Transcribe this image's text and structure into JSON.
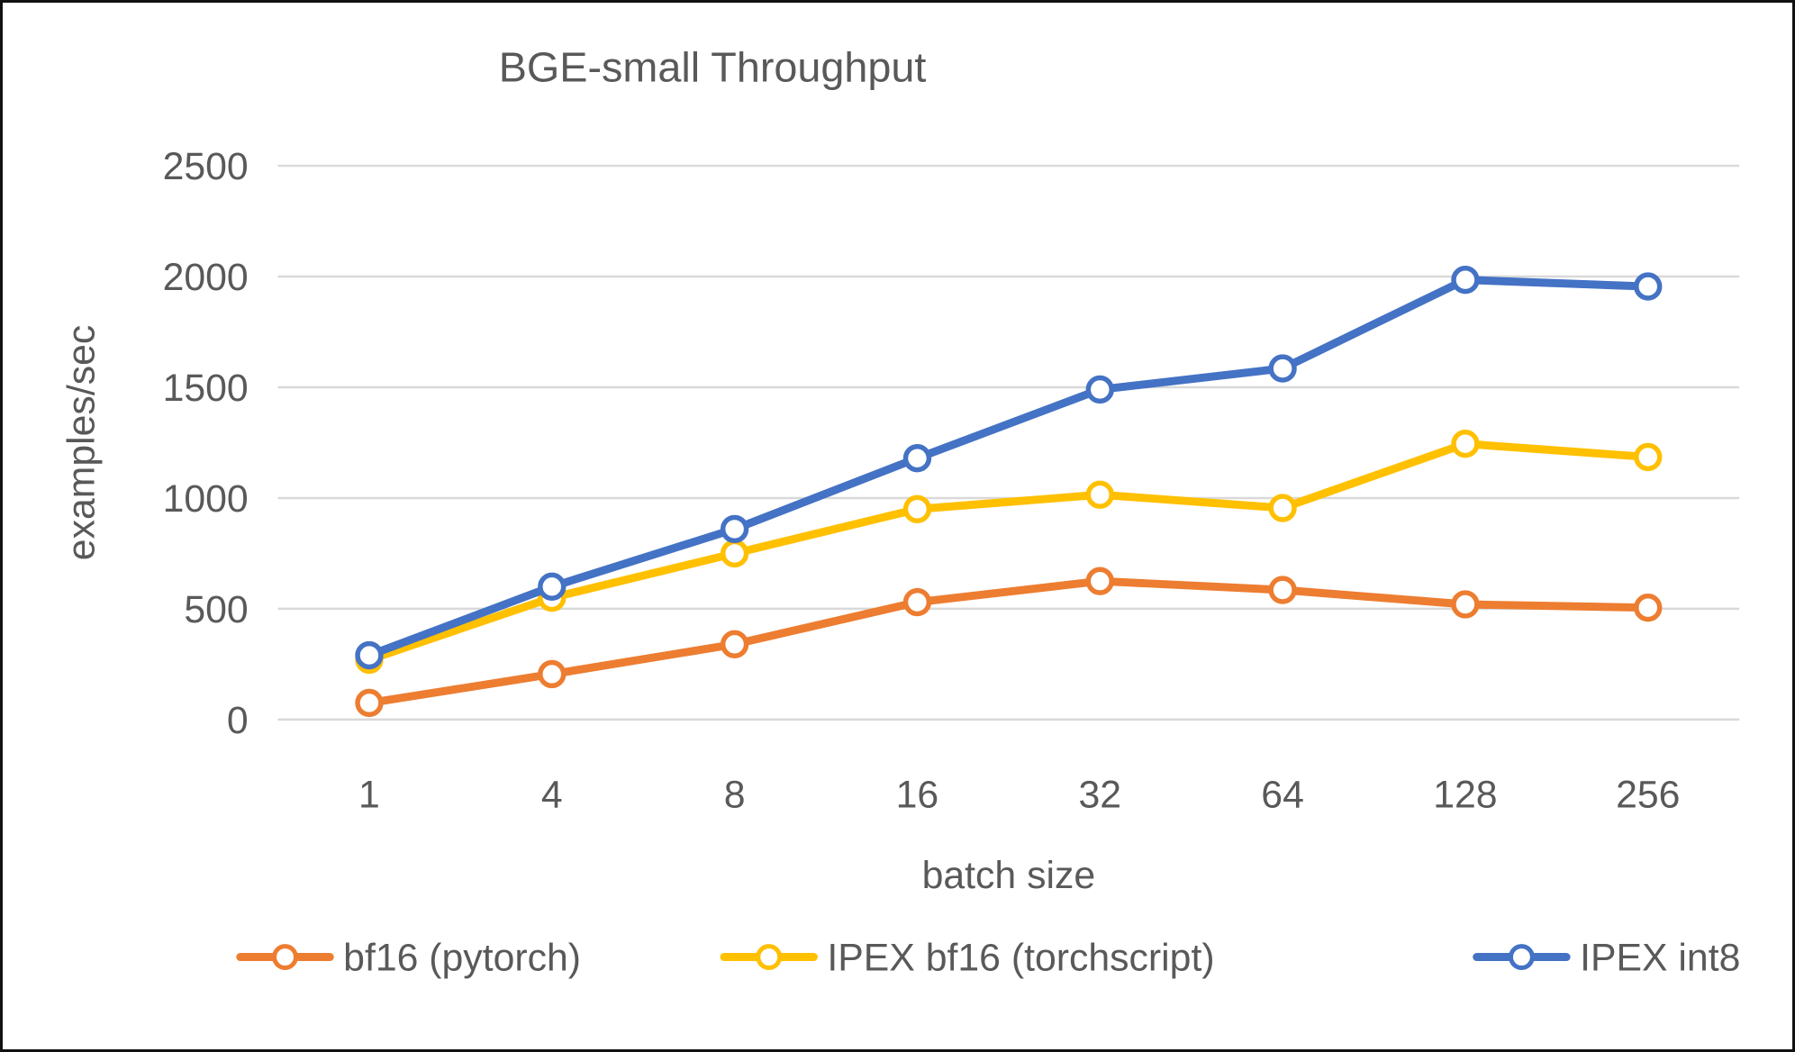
{
  "chart_data": {
    "type": "line",
    "title": "BGE-small Throughput",
    "xlabel": "batch size",
    "ylabel": "examples/sec",
    "categories": [
      "1",
      "4",
      "8",
      "16",
      "32",
      "64",
      "128",
      "256"
    ],
    "series": [
      {
        "name": "bf16 (pytorch)",
        "color": "#ED7D31",
        "values": [
          75,
          205,
          340,
          530,
          625,
          585,
          520,
          505
        ]
      },
      {
        "name": "IPEX bf16 (torchscript)",
        "color": "#FFC000",
        "values": [
          270,
          550,
          750,
          950,
          1015,
          955,
          1245,
          1185
        ]
      },
      {
        "name": "IPEX int8",
        "color": "#4472C4",
        "values": [
          290,
          600,
          860,
          1180,
          1490,
          1585,
          1985,
          1955
        ]
      }
    ],
    "ylim": [
      0,
      2500
    ],
    "ytick_step": 500,
    "ytick_labels": [
      "0",
      "500",
      "1000",
      "1500",
      "2000",
      "2500"
    ],
    "grid": true,
    "legend_position": "bottom",
    "gridline_color": "#D9D9D9",
    "text_color": "#595959",
    "background": "#FFFFFF",
    "frame_border_color": "#111111"
  }
}
